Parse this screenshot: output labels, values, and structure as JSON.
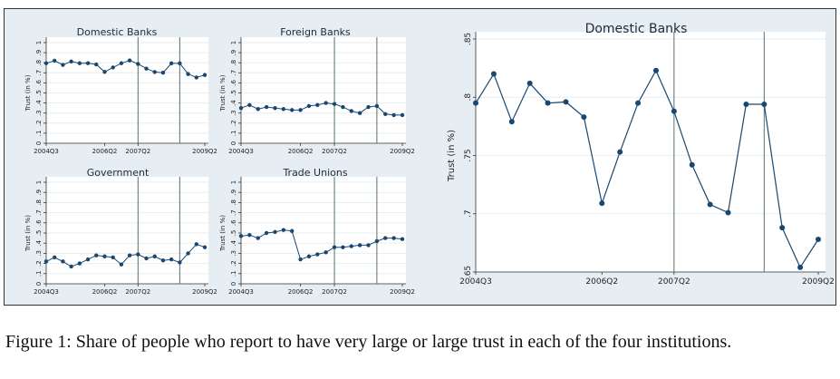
{
  "caption": "Figure 1: Share of people who report to have very large or large trust in each of the four institutions.",
  "colors": {
    "panel_bg": "#e6eef3",
    "plot_bg": "#ffffff",
    "line": "#1a476f",
    "vline": "#56716a"
  },
  "chart_data": [
    {
      "type": "line",
      "title": "Domestic Banks",
      "ylabel": "Trust (in %)",
      "ylim": [
        0,
        1
      ],
      "yticks": [
        "0",
        ".1",
        ".2",
        ".3",
        ".4",
        ".5",
        ".6",
        ".7",
        ".8",
        ".9",
        "1"
      ],
      "xticks": [
        "2004Q3",
        "2006Q2",
        "2007Q2",
        "2009Q2"
      ],
      "vlines": [
        2007.25,
        2008.5
      ],
      "x": [
        2004.5,
        2004.75,
        2005.0,
        2005.25,
        2005.5,
        2005.75,
        2006.0,
        2006.25,
        2006.5,
        2006.75,
        2007.0,
        2007.25,
        2007.5,
        2007.75,
        2008.0,
        2008.25,
        2008.5,
        2008.75,
        2009.0,
        2009.25
      ],
      "values": [
        0.795,
        0.82,
        0.779,
        0.812,
        0.795,
        0.796,
        0.783,
        0.709,
        0.753,
        0.795,
        0.823,
        0.788,
        0.742,
        0.708,
        0.701,
        0.794,
        0.794,
        0.688,
        0.654,
        0.678
      ]
    },
    {
      "type": "line",
      "title": "Foreign Banks",
      "ylabel": "Trust (in %)",
      "ylim": [
        0,
        1
      ],
      "yticks": [
        "0",
        ".1",
        ".2",
        ".3",
        ".4",
        ".5",
        ".6",
        ".7",
        ".8",
        ".9",
        "1"
      ],
      "xticks": [
        "2004Q3",
        "2006Q2",
        "2007Q2",
        "2009Q2"
      ],
      "vlines": [
        2007.25,
        2008.5
      ],
      "x": [
        2004.5,
        2004.75,
        2005.0,
        2005.25,
        2005.5,
        2005.75,
        2006.0,
        2006.25,
        2006.5,
        2006.75,
        2007.0,
        2007.25,
        2007.5,
        2007.75,
        2008.0,
        2008.25,
        2008.5,
        2008.75,
        2009.0,
        2009.25
      ],
      "values": [
        0.35,
        0.38,
        0.34,
        0.36,
        0.35,
        0.34,
        0.33,
        0.33,
        0.37,
        0.38,
        0.4,
        0.39,
        0.36,
        0.32,
        0.3,
        0.36,
        0.37,
        0.29,
        0.28,
        0.28
      ]
    },
    {
      "type": "line",
      "title": "Government",
      "ylabel": "Trust (in %)",
      "ylim": [
        0,
        1
      ],
      "yticks": [
        "0",
        ".1",
        ".2",
        ".3",
        ".4",
        ".5",
        ".6",
        ".7",
        ".8",
        ".9",
        "1"
      ],
      "xticks": [
        "2004Q3",
        "2006Q2",
        "2007Q2",
        "2009Q2"
      ],
      "vlines": [
        2007.25,
        2008.5
      ],
      "x": [
        2004.5,
        2004.75,
        2005.0,
        2005.25,
        2005.5,
        2005.75,
        2006.0,
        2006.25,
        2006.5,
        2006.75,
        2007.0,
        2007.25,
        2007.5,
        2007.75,
        2008.0,
        2008.25,
        2008.5,
        2008.75,
        2009.0,
        2009.25
      ],
      "values": [
        0.22,
        0.26,
        0.22,
        0.17,
        0.2,
        0.24,
        0.28,
        0.27,
        0.26,
        0.19,
        0.28,
        0.29,
        0.25,
        0.27,
        0.23,
        0.24,
        0.21,
        0.3,
        0.39,
        0.36
      ]
    },
    {
      "type": "line",
      "title": "Trade Unions",
      "ylabel": "Trust (in %)",
      "ylim": [
        0,
        1
      ],
      "yticks": [
        "0",
        ".1",
        ".2",
        ".3",
        ".4",
        ".5",
        ".6",
        ".7",
        ".8",
        ".9",
        "1"
      ],
      "xticks": [
        "2004Q3",
        "2006Q2",
        "2007Q2",
        "2009Q2"
      ],
      "vlines": [
        2007.25,
        2008.5
      ],
      "x": [
        2004.5,
        2004.75,
        2005.0,
        2005.25,
        2005.5,
        2005.75,
        2006.0,
        2006.25,
        2006.5,
        2006.75,
        2007.0,
        2007.25,
        2007.5,
        2007.75,
        2008.0,
        2008.25,
        2008.5,
        2008.75,
        2009.0,
        2009.25
      ],
      "values": [
        0.47,
        0.48,
        0.45,
        0.5,
        0.51,
        0.53,
        0.52,
        0.24,
        0.27,
        0.29,
        0.31,
        0.36,
        0.36,
        0.37,
        0.38,
        0.38,
        0.42,
        0.45,
        0.45,
        0.44
      ]
    },
    {
      "type": "line",
      "title": "Domestic Banks",
      "ylabel": "Trust (in %)",
      "ylim": [
        0.65,
        0.85
      ],
      "yticks": [
        ".65",
        ".7",
        ".75",
        ".8",
        ".85"
      ],
      "xticks": [
        "2004Q3",
        "2006Q2",
        "2007Q2",
        "2009Q2"
      ],
      "vlines": [
        2007.25,
        2008.5
      ],
      "x": [
        2004.5,
        2004.75,
        2005.0,
        2005.25,
        2005.5,
        2005.75,
        2006.0,
        2006.25,
        2006.5,
        2006.75,
        2007.0,
        2007.25,
        2007.5,
        2007.75,
        2008.0,
        2008.25,
        2008.5,
        2008.75,
        2009.0,
        2009.25
      ],
      "values": [
        0.795,
        0.82,
        0.779,
        0.812,
        0.795,
        0.796,
        0.783,
        0.709,
        0.753,
        0.795,
        0.823,
        0.788,
        0.742,
        0.708,
        0.701,
        0.794,
        0.794,
        0.688,
        0.654,
        0.678
      ]
    }
  ]
}
